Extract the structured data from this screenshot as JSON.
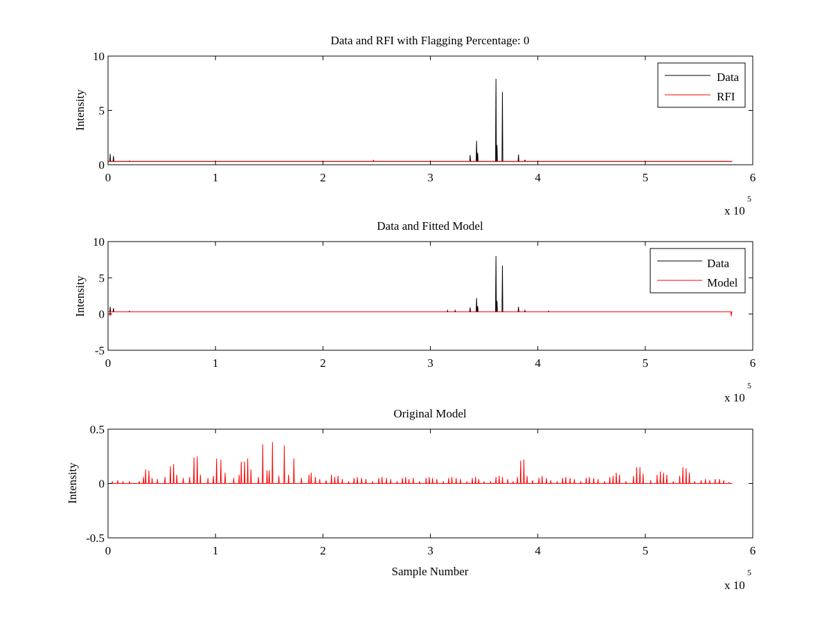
{
  "chart_data": [
    {
      "type": "line",
      "title": "Data and RFI with Flagging Percentage: 0",
      "xlabel": "",
      "ylabel": "Intensity",
      "xlim": [
        0,
        600000
      ],
      "ylim": [
        0,
        10
      ],
      "xticks": [
        0,
        1,
        2,
        3,
        4,
        5,
        6
      ],
      "yticks": [
        0,
        5,
        10
      ],
      "x_exponent": {
        "base": "x 10",
        "power": "5"
      },
      "grid": false,
      "legend": "top-right",
      "baseline": 0.3,
      "series": [
        {
          "name": "Data",
          "color": "#000000",
          "spikes": [
            [
              2000,
              1.0
            ],
            [
              5000,
              0.8
            ],
            [
              20000,
              0.35
            ],
            [
              337000,
              0.9
            ],
            [
              343000,
              2.2
            ],
            [
              344000,
              1.1
            ],
            [
              361000,
              7.9
            ],
            [
              362000,
              1.8
            ],
            [
              367000,
              6.7
            ],
            [
              382000,
              0.95
            ],
            [
              388000,
              0.45
            ]
          ]
        },
        {
          "name": "RFI",
          "color": "#ff0000",
          "spikes": [
            [
              247000,
              0.45
            ]
          ]
        }
      ]
    },
    {
      "type": "line",
      "title": "Data and Fitted Model",
      "xlabel": "",
      "ylabel": "Intensity",
      "xlim": [
        0,
        600000
      ],
      "ylim": [
        -5,
        10
      ],
      "xticks": [
        0,
        1,
        2,
        3,
        4,
        5,
        6
      ],
      "yticks": [
        -5,
        0,
        5,
        10
      ],
      "x_exponent": {
        "base": "x 10",
        "power": "5"
      },
      "grid": false,
      "legend": "top-right",
      "baseline": 0.3,
      "series": [
        {
          "name": "Data",
          "color": "#000000",
          "spikes": [
            [
              2000,
              1.0
            ],
            [
              5000,
              0.8
            ],
            [
              20000,
              0.4
            ],
            [
              316000,
              0.5
            ],
            [
              323000,
              0.5
            ],
            [
              337000,
              0.9
            ],
            [
              343000,
              2.2
            ],
            [
              344000,
              1.1
            ],
            [
              361000,
              8.0
            ],
            [
              362000,
              1.8
            ],
            [
              367000,
              6.7
            ],
            [
              382000,
              1.0
            ],
            [
              388000,
              0.5
            ],
            [
              410000,
              0.4
            ]
          ]
        },
        {
          "name": "Model",
          "color": "#ff0000",
          "spikes": [
            [
              2000,
              -0.3
            ],
            [
              580000,
              -0.3
            ]
          ]
        }
      ]
    },
    {
      "type": "line",
      "title": "Original Model",
      "xlabel": "Sample Number",
      "ylabel": "Intensity",
      "xlim": [
        0,
        600000
      ],
      "ylim": [
        -0.5,
        0.5
      ],
      "xticks": [
        0,
        1,
        2,
        3,
        4,
        5,
        6
      ],
      "yticks": [
        -0.5,
        0,
        0.5
      ],
      "ytick_labels": [
        "-0.5",
        "0",
        "0.5"
      ],
      "x_exponent": {
        "base": "x 10",
        "power": "5"
      },
      "grid": false,
      "legend": "none",
      "baseline": 0.0,
      "series": [
        {
          "color": "#ff0000",
          "spikes": [
            [
              4000,
              0.02
            ],
            [
              9000,
              0.03
            ],
            [
              14000,
              0.02
            ],
            [
              20000,
              0.02
            ],
            [
              29000,
              0.02
            ],
            [
              33000,
              0.06
            ],
            [
              35000,
              0.13
            ],
            [
              38000,
              0.12
            ],
            [
              41000,
              0.05
            ],
            [
              46000,
              0.04
            ],
            [
              53000,
              0.06
            ],
            [
              58000,
              0.16
            ],
            [
              61000,
              0.18
            ],
            [
              64000,
              0.08
            ],
            [
              70000,
              0.05
            ],
            [
              76000,
              0.06
            ],
            [
              80000,
              0.24
            ],
            [
              83000,
              0.25
            ],
            [
              86000,
              0.08
            ],
            [
              93000,
              0.05
            ],
            [
              98000,
              0.07
            ],
            [
              101000,
              0.23
            ],
            [
              105000,
              0.22
            ],
            [
              109000,
              0.1
            ],
            [
              117000,
              0.05
            ],
            [
              122000,
              0.08
            ],
            [
              124000,
              0.2
            ],
            [
              127000,
              0.2
            ],
            [
              130000,
              0.23
            ],
            [
              133000,
              0.13
            ],
            [
              140000,
              0.06
            ],
            [
              144000,
              0.36
            ],
            [
              148000,
              0.12
            ],
            [
              150000,
              0.12
            ],
            [
              153000,
              0.38
            ],
            [
              159000,
              0.07
            ],
            [
              164000,
              0.35
            ],
            [
              168000,
              0.08
            ],
            [
              173000,
              0.23
            ],
            [
              180000,
              0.05
            ],
            [
              187000,
              0.08
            ],
            [
              189000,
              0.1
            ],
            [
              193000,
              0.06
            ],
            [
              197000,
              0.04
            ],
            [
              203000,
              0.03
            ],
            [
              208000,
              0.08
            ],
            [
              211000,
              0.06
            ],
            [
              214000,
              0.07
            ],
            [
              218000,
              0.04
            ],
            [
              224000,
              0.02
            ],
            [
              229000,
              0.05
            ],
            [
              232000,
              0.06
            ],
            [
              236000,
              0.05
            ],
            [
              240000,
              0.04
            ],
            [
              246000,
              0.02
            ],
            [
              252000,
              0.05
            ],
            [
              255000,
              0.06
            ],
            [
              259000,
              0.05
            ],
            [
              263000,
              0.04
            ],
            [
              269000,
              0.02
            ],
            [
              274000,
              0.05
            ],
            [
              277000,
              0.06
            ],
            [
              280000,
              0.04
            ],
            [
              284000,
              0.05
            ],
            [
              290000,
              0.02
            ],
            [
              296000,
              0.05
            ],
            [
              299000,
              0.06
            ],
            [
              302000,
              0.05
            ],
            [
              306000,
              0.04
            ],
            [
              312000,
              0.02
            ],
            [
              317000,
              0.05
            ],
            [
              320000,
              0.06
            ],
            [
              324000,
              0.05
            ],
            [
              328000,
              0.04
            ],
            [
              334000,
              0.02
            ],
            [
              339000,
              0.05
            ],
            [
              342000,
              0.06
            ],
            [
              345000,
              0.04
            ],
            [
              350000,
              0.02
            ],
            [
              356000,
              0.02
            ],
            [
              361000,
              0.06
            ],
            [
              364000,
              0.07
            ],
            [
              367000,
              0.06
            ],
            [
              372000,
              0.04
            ],
            [
              377000,
              0.02
            ],
            [
              381000,
              0.06
            ],
            [
              384000,
              0.21
            ],
            [
              387000,
              0.22
            ],
            [
              390000,
              0.07
            ],
            [
              395000,
              0.03
            ],
            [
              401000,
              0.05
            ],
            [
              404000,
              0.07
            ],
            [
              408000,
              0.05
            ],
            [
              412000,
              0.03
            ],
            [
              418000,
              0.02
            ],
            [
              423000,
              0.05
            ],
            [
              426000,
              0.06
            ],
            [
              430000,
              0.05
            ],
            [
              434000,
              0.04
            ],
            [
              440000,
              0.02
            ],
            [
              445000,
              0.05
            ],
            [
              448000,
              0.06
            ],
            [
              452000,
              0.05
            ],
            [
              456000,
              0.04
            ],
            [
              462000,
              0.02
            ],
            [
              467000,
              0.06
            ],
            [
              470000,
              0.07
            ],
            [
              473000,
              0.1
            ],
            [
              476000,
              0.08
            ],
            [
              482000,
              0.02
            ],
            [
              489000,
              0.07
            ],
            [
              492000,
              0.15
            ],
            [
              495000,
              0.15
            ],
            [
              498000,
              0.09
            ],
            [
              505000,
              0.03
            ],
            [
              511000,
              0.08
            ],
            [
              514000,
              0.11
            ],
            [
              517000,
              0.1
            ],
            [
              520000,
              0.08
            ],
            [
              526000,
              0.02
            ],
            [
              532000,
              0.07
            ],
            [
              535000,
              0.15
            ],
            [
              538000,
              0.14
            ],
            [
              541000,
              0.1
            ],
            [
              546000,
              0.02
            ],
            [
              552000,
              0.03
            ],
            [
              556000,
              0.04
            ],
            [
              560000,
              0.03
            ],
            [
              565000,
              0.04
            ],
            [
              569000,
              0.04
            ],
            [
              573000,
              0.03
            ],
            [
              578000,
              0.01
            ]
          ]
        }
      ]
    }
  ]
}
